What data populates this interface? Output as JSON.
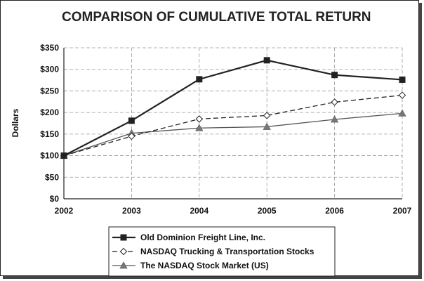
{
  "chart_data": {
    "type": "line",
    "title": "COMPARISON OF CUMULATIVE TOTAL RETURN",
    "xlabel": "",
    "ylabel": "Dollars",
    "x": [
      "2002",
      "2003",
      "2004",
      "2005",
      "2006",
      "2007"
    ],
    "y_ticks": [
      "$0",
      "$50",
      "$100",
      "$150",
      "$200",
      "$250",
      "$300",
      "$350"
    ],
    "ylim": [
      0,
      350
    ],
    "grid": true,
    "legend_position": "bottom",
    "series": [
      {
        "name": "Old Dominion Freight Line, Inc.",
        "values": [
          100,
          181,
          277,
          321,
          287,
          276
        ],
        "color": "#222222",
        "style": "solid-thick",
        "marker": "square"
      },
      {
        "name": "NASDAQ Trucking & Transportation Stocks",
        "values": [
          100,
          145,
          185,
          193,
          224,
          240
        ],
        "color": "#222222",
        "style": "dashed",
        "marker": "diamond-open"
      },
      {
        "name": "The NASDAQ Stock Market (US)",
        "values": [
          100,
          152,
          164,
          167,
          184,
          198
        ],
        "color": "#555555",
        "style": "solid-thin",
        "marker": "triangle"
      }
    ]
  }
}
